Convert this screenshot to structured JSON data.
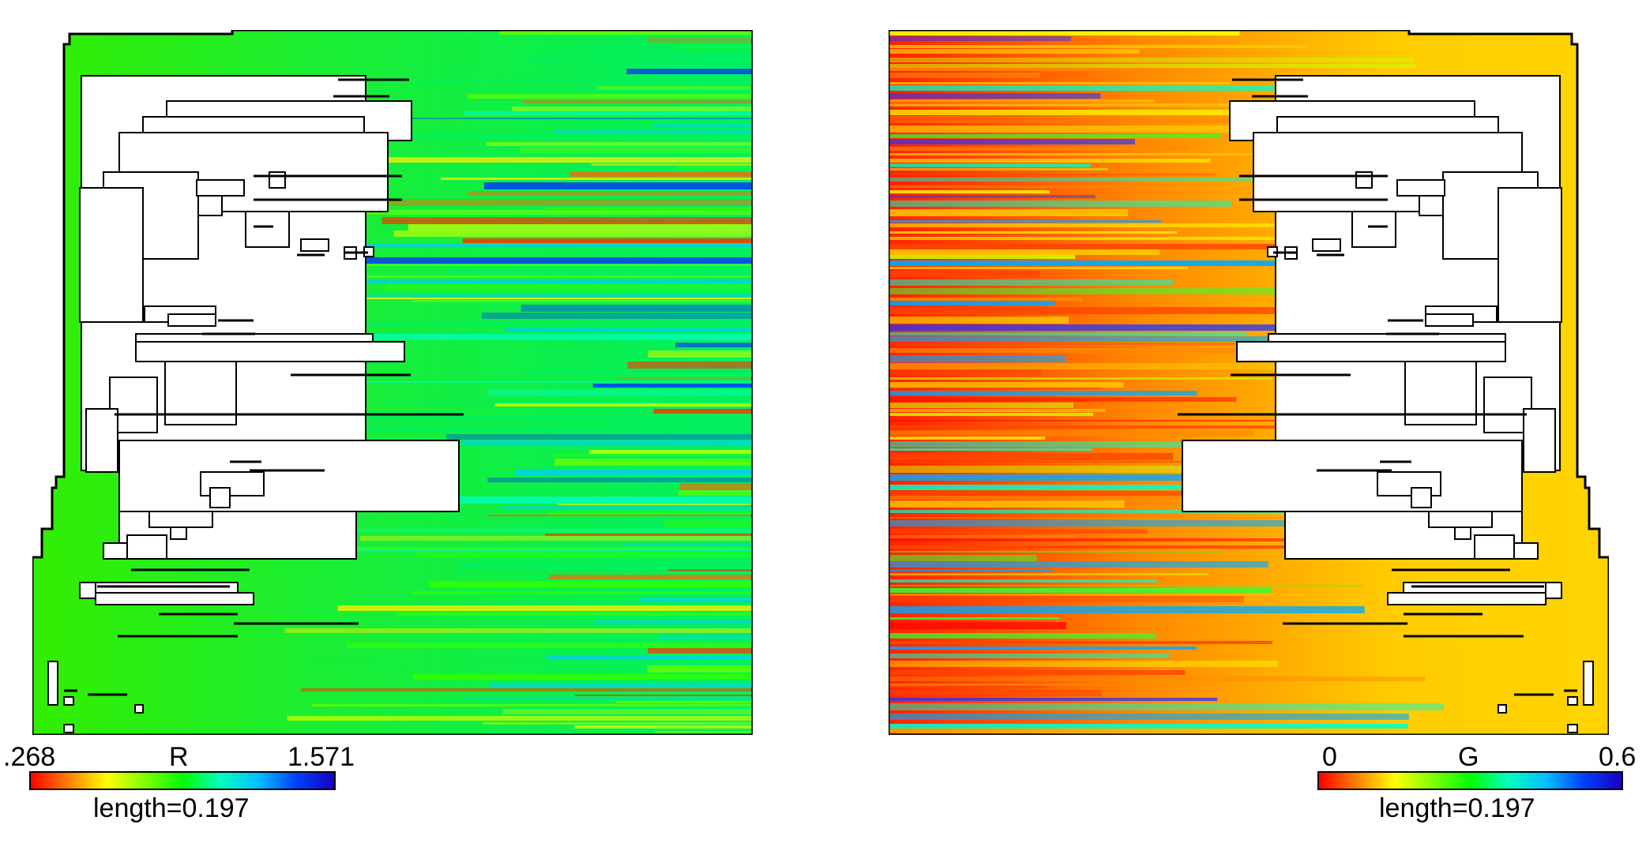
{
  "figure": {
    "panels": [
      {
        "id": "left",
        "variable": "R",
        "colorbar": {
          "min": ".268",
          "max": "1.571",
          "label": "R",
          "caption": "length=0.197"
        },
        "dominant_color": "#00e64d",
        "stripe_palette": [
          "#00f060",
          "#33ff00",
          "#66ff00",
          "#ccff00",
          "#ffee00",
          "#00ffcc",
          "#00ccff",
          "#0033ff",
          "#ff6600",
          "#ff3300"
        ]
      },
      {
        "id": "right",
        "variable": "G",
        "colorbar": {
          "min": "0",
          "max": "0.6",
          "label": "G",
          "caption": "length=0.197"
        },
        "dominant_color": "#ffd500",
        "stripe_palette": [
          "#ff0000",
          "#ff4400",
          "#ff8800",
          "#ffcc00",
          "#ffff00",
          "#ccff00",
          "#33ff33",
          "#00ffcc",
          "#00aaff",
          "#2233ff"
        ]
      }
    ],
    "colormap": [
      "#ff0000",
      "#ff8000",
      "#ffff00",
      "#80ff00",
      "#00ff00",
      "#00ffc0",
      "#00c0ff",
      "#0040ff",
      "#1a00c0"
    ]
  }
}
